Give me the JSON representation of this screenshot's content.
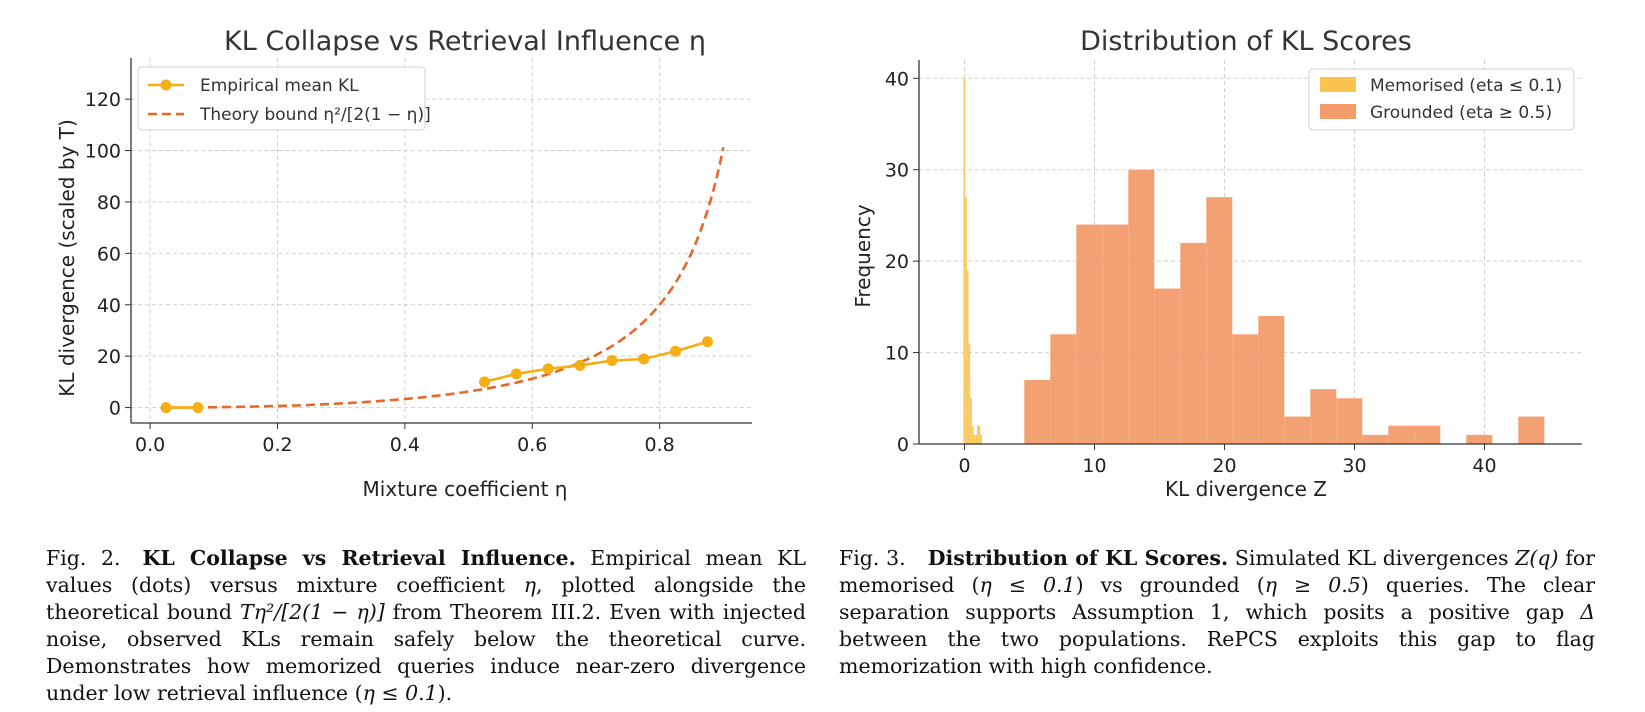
{
  "chart_data": [
    {
      "type": "line",
      "title": "KL Collapse vs Retrieval Influence η",
      "xlabel": "Mixture coefficient η",
      "ylabel": "KL divergence (scaled by T)",
      "xlim": [
        -0.03,
        0.945
      ],
      "ylim": [
        -6,
        136
      ],
      "xticks": [
        "0.0",
        "0.2",
        "0.4",
        "0.6",
        "0.8"
      ],
      "yticks": [
        "0",
        "20",
        "40",
        "60",
        "80",
        "100",
        "120"
      ],
      "grid": true,
      "legend_position": "top-left",
      "series": [
        {
          "name": "Empirical mean KL",
          "style": "solid-with-markers",
          "color": "#F5AE14",
          "x": [
            0.025,
            0.075,
            0.525,
            0.575,
            0.625,
            0.675,
            0.725,
            0.775,
            0.825,
            0.875
          ],
          "y": [
            0.0,
            0.0,
            10.0,
            13.1,
            15.1,
            16.4,
            18.3,
            18.9,
            21.9,
            25.6
          ]
        },
        {
          "name": "Theory bound η²/[2(1 − η)]",
          "style": "dashed",
          "color": "#E8672A",
          "formula": "T*eta^2/(2*(1-eta)), T=25, eta in [0.025, 0.9]"
        }
      ]
    },
    {
      "type": "histogram",
      "title": "Distribution of KL Scores",
      "xlabel": "KL divergence Z",
      "ylabel": "Frequency",
      "xlim": [
        -3.5,
        47.5
      ],
      "ylim": [
        0,
        42
      ],
      "xticks": [
        "0",
        "10",
        "20",
        "30",
        "40"
      ],
      "yticks": [
        "0",
        "10",
        "20",
        "30",
        "40"
      ],
      "grid": true,
      "legend_position": "top-right",
      "series": [
        {
          "name": "Memorised (eta ≤ 0.1)",
          "color": "#F9C44E",
          "bin_edges": [
            -0.08,
            0.05,
            0.18,
            0.31,
            0.44,
            0.57,
            0.7,
            0.83,
            0.96,
            1.09,
            1.22,
            1.35
          ],
          "counts": [
            40,
            27,
            19,
            11,
            5,
            2,
            1,
            1,
            2,
            2,
            1
          ]
        },
        {
          "name": "Grounded (eta ≥ 0.5)",
          "color": "#F29C6B",
          "bin_edges": [
            4.6,
            6.6,
            8.6,
            10.6,
            12.6,
            14.6,
            16.6,
            18.6,
            20.6,
            22.6,
            24.6,
            26.6,
            28.6,
            30.6,
            32.6,
            34.6,
            36.6,
            38.6,
            40.6,
            42.6,
            44.6
          ],
          "counts": [
            7,
            12,
            24,
            24,
            30,
            17,
            22,
            27,
            12,
            14,
            3,
            6,
            5,
            1,
            2,
            2,
            0,
            1,
            0,
            3
          ]
        }
      ]
    }
  ],
  "captions": {
    "fig2": {
      "number": "Fig. 2.",
      "title": "KL Collapse vs Retrieval Influence.",
      "p1": " Empirical mean KL values (dots) versus mixture coefficient ",
      "eta1": "η",
      "p2": ", plotted alongside the theoretical bound ",
      "formula": "Tη²/[2(1 − η)]",
      "p3": " from Theorem III.2. Even with injected noise, observed KLs remain safely below the theoretical curve. Demonstrates how memorized queries induce near-zero divergence under low retrieval influence (",
      "cond": "η ≤ 0.1",
      "p4": ")."
    },
    "fig3": {
      "number": "Fig. 3.",
      "title": "Distribution of KL Scores.",
      "p1": " Simulated KL divergences ",
      "zq": "Z(q)",
      "p2": " for memorised (",
      "cond1": "η ≤ 0.1",
      "p3": ") vs grounded (",
      "cond2": "η ≥ 0.5",
      "p4": ") queries. The clear separation supports Assumption 1, which posits a positive gap ",
      "delta": "Δ",
      "p5": " between the two populations. RePCS exploits this gap to flag memorization with high confidence."
    }
  }
}
